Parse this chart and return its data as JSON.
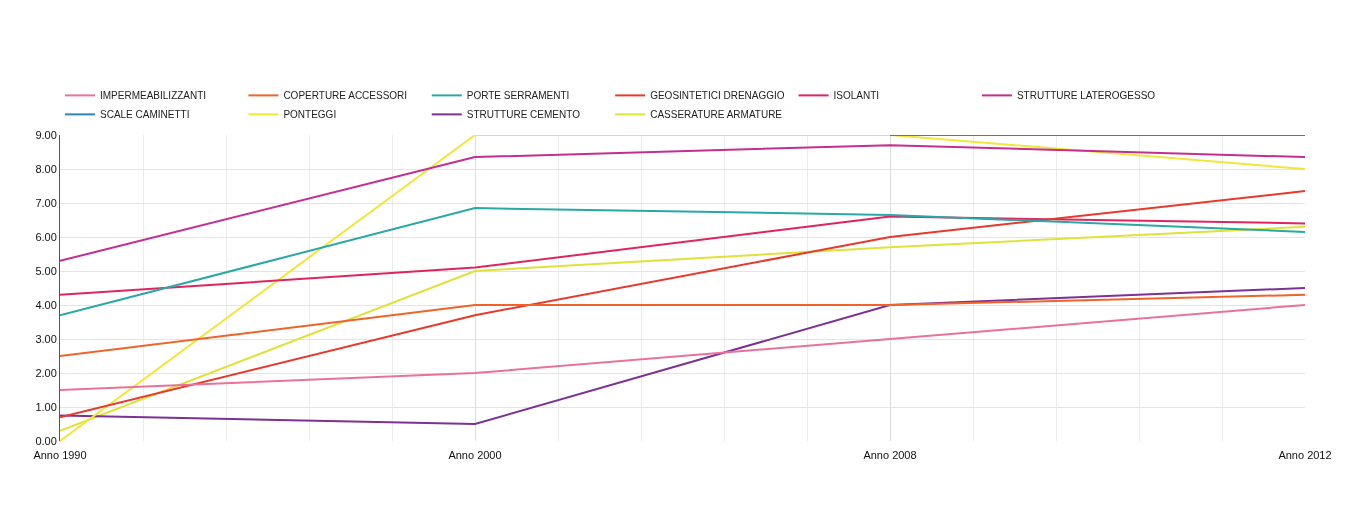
{
  "chart_data": {
    "type": "line",
    "categories": [
      "Anno 1990",
      "Anno 2000",
      "Anno 2008",
      "Anno 2012"
    ],
    "ylim": [
      0,
      9
    ],
    "yticks": [
      {
        "value": 0,
        "label": "0.00"
      },
      {
        "value": 1,
        "label": "1.00"
      },
      {
        "value": 2,
        "label": "2.00"
      },
      {
        "value": 3,
        "label": "3.00"
      },
      {
        "value": 4,
        "label": "4.00"
      },
      {
        "value": 5,
        "label": "5.00"
      },
      {
        "value": 6,
        "label": "6.00"
      },
      {
        "value": 7,
        "label": "7.00"
      },
      {
        "value": 8,
        "label": "8.00"
      },
      {
        "value": 9,
        "label": "9.00"
      }
    ],
    "grid": true,
    "legend": "top left",
    "marker": "none",
    "line_style": "solid",
    "series": [
      {
        "name": "IMPERMEABILIZZANTI",
        "color": "#e8739a",
        "values": [
          1.5,
          2.0,
          3.0,
          4.0
        ]
      },
      {
        "name": "COPERTURE ACCESSORI",
        "color": "#f0642a",
        "values": [
          2.5,
          4.0,
          4.0,
          4.3
        ]
      },
      {
        "name": "PORTE SERRAMENTI",
        "color": "#2aa8a4",
        "values": [
          3.7,
          6.85,
          6.65,
          6.15
        ]
      },
      {
        "name": "GEOSINTETICI DRENAGGIO",
        "color": "#e8392b",
        "values": [
          0.7,
          3.7,
          6.0,
          7.35
        ]
      },
      {
        "name": "ISOLANTI",
        "color": "#e0245e",
        "values": [
          4.3,
          5.1,
          6.6,
          6.4
        ]
      },
      {
        "name": "STRUTTURE LATEROGESSO",
        "color": "#c42e8e",
        "values": [
          5.3,
          8.35,
          8.7,
          8.35
        ]
      },
      {
        "name": "SCALE CAMINETTI",
        "color": "#2e86b8",
        "values": [
          null,
          null,
          9.0,
          9.0
        ]
      },
      {
        "name": "PONTEGGI",
        "color": "#f2e63a",
        "values": [
          0.0,
          9.0,
          9.0,
          8.0
        ]
      },
      {
        "name": "STRUTTURE CEMENTO",
        "color": "#7b3294",
        "values": [
          0.75,
          0.5,
          4.0,
          4.5
        ]
      },
      {
        "name": "CASSERATURE ARMATURE",
        "color": "#dfe23a",
        "values": [
          0.3,
          5.0,
          5.7,
          6.3
        ]
      }
    ]
  }
}
